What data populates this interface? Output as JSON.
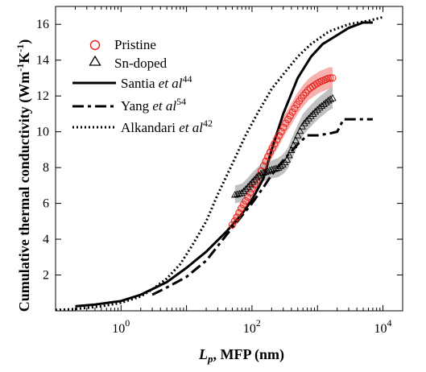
{
  "chart_data": {
    "type": "line",
    "xlabel": {
      "var": "L",
      "sub": "p",
      "rest": ", MFP (nm)"
    },
    "ylabel": {
      "main": "Cumulative thermal conductivity (Wm",
      "sup1": "-1",
      "mid": "K",
      "sup2": "-1",
      "close": ")"
    },
    "x_scale": "log",
    "xlim": [
      0.1,
      20000
    ],
    "ylim": [
      0,
      17
    ],
    "x_ticks": [
      {
        "value": 1,
        "base": "10",
        "exp": "0"
      },
      {
        "value": 100,
        "base": "10",
        "exp": "2"
      },
      {
        "value": 10000,
        "base": "10",
        "exp": "4"
      }
    ],
    "y_ticks": [
      2,
      4,
      6,
      8,
      10,
      12,
      14,
      16
    ],
    "grid": false,
    "legend_position": "top-left",
    "series": [
      {
        "name": "Pristine",
        "kind": "markers",
        "marker": "circle",
        "color": "#e8201a",
        "band_color": "#f4a3a0",
        "points": [
          [
            50,
            4.8
          ],
          [
            60,
            5.3
          ],
          [
            70,
            5.8
          ],
          [
            85,
            6.3
          ],
          [
            100,
            6.8
          ],
          [
            120,
            7.3
          ],
          [
            150,
            8.1
          ],
          [
            180,
            8.7
          ],
          [
            220,
            9.3
          ],
          [
            270,
            9.9
          ],
          [
            330,
            10.5
          ],
          [
            400,
            11.0
          ],
          [
            500,
            11.6
          ],
          [
            600,
            12.0
          ],
          [
            750,
            12.4
          ],
          [
            900,
            12.6
          ],
          [
            1100,
            12.8
          ],
          [
            1300,
            12.9
          ],
          [
            1500,
            13.0
          ],
          [
            1700,
            13.0
          ]
        ],
        "band": [
          [
            50,
            0.3
          ],
          [
            100,
            0.4
          ],
          [
            200,
            0.5
          ],
          [
            400,
            0.6
          ],
          [
            800,
            0.6
          ],
          [
            1700,
            0.6
          ]
        ]
      },
      {
        "name": "Sn-doped",
        "kind": "markers",
        "marker": "triangle",
        "color": "#000000",
        "band_color": "#b5b5b5",
        "points": [
          [
            55,
            6.5
          ],
          [
            70,
            6.6
          ],
          [
            85,
            6.9
          ],
          [
            100,
            7.2
          ],
          [
            120,
            7.5
          ],
          [
            140,
            7.7
          ],
          [
            170,
            7.8
          ],
          [
            200,
            7.9
          ],
          [
            250,
            8.0
          ],
          [
            300,
            8.2
          ],
          [
            350,
            8.5
          ],
          [
            400,
            9.0
          ],
          [
            500,
            9.8
          ],
          [
            600,
            10.4
          ],
          [
            750,
            10.8
          ],
          [
            900,
            11.1
          ],
          [
            1100,
            11.4
          ],
          [
            1300,
            11.6
          ],
          [
            1500,
            11.8
          ],
          [
            1700,
            11.9
          ]
        ],
        "band": [
          [
            55,
            0.5
          ],
          [
            100,
            0.5
          ],
          [
            200,
            0.5
          ],
          [
            400,
            0.6
          ],
          [
            800,
            0.6
          ],
          [
            1700,
            0.6
          ]
        ]
      },
      {
        "name": "Santia",
        "name_suffix": "et al",
        "ref": "44",
        "kind": "line",
        "dash": "solid",
        "color": "#000000",
        "points": [
          [
            0.2,
            0.25
          ],
          [
            0.4,
            0.35
          ],
          [
            1,
            0.55
          ],
          [
            2,
            0.9
          ],
          [
            5,
            1.6
          ],
          [
            10,
            2.4
          ],
          [
            20,
            3.3
          ],
          [
            40,
            4.4
          ],
          [
            70,
            5.4
          ],
          [
            100,
            6.2
          ],
          [
            150,
            7.4
          ],
          [
            200,
            9.0
          ],
          [
            300,
            11.0
          ],
          [
            500,
            13.0
          ],
          [
            800,
            14.2
          ],
          [
            1200,
            14.9
          ],
          [
            2000,
            15.4
          ],
          [
            3000,
            15.8
          ],
          [
            5000,
            16.1
          ],
          [
            7000,
            16.1
          ]
        ]
      },
      {
        "name": "Yang",
        "name_suffix": "et al",
        "ref": "54",
        "kind": "line",
        "dash": "dashdot",
        "color": "#000000",
        "points": [
          [
            3,
            0.9
          ],
          [
            5,
            1.3
          ],
          [
            10,
            1.9
          ],
          [
            20,
            2.8
          ],
          [
            40,
            4.2
          ],
          [
            70,
            5.3
          ],
          [
            100,
            6.0
          ],
          [
            150,
            6.9
          ],
          [
            200,
            7.6
          ],
          [
            300,
            8.4
          ],
          [
            500,
            9.3
          ],
          [
            700,
            9.8
          ],
          [
            1000,
            9.8
          ],
          [
            1500,
            9.9
          ],
          [
            2000,
            10.0
          ],
          [
            2500,
            10.7
          ],
          [
            3500,
            10.7
          ],
          [
            7000,
            10.7
          ]
        ]
      },
      {
        "name": "Alkandari",
        "name_suffix": "et al",
        "ref": "42",
        "kind": "line",
        "dash": "dotted",
        "color": "#000000",
        "points": [
          [
            0.1,
            0.05
          ],
          [
            0.2,
            0.1
          ],
          [
            0.5,
            0.25
          ],
          [
            1,
            0.45
          ],
          [
            2,
            0.8
          ],
          [
            3,
            1.2
          ],
          [
            5,
            1.8
          ],
          [
            8,
            2.6
          ],
          [
            12,
            3.6
          ],
          [
            20,
            5.0
          ],
          [
            30,
            6.5
          ],
          [
            50,
            8.2
          ],
          [
            80,
            9.8
          ],
          [
            120,
            11.0
          ],
          [
            200,
            12.4
          ],
          [
            300,
            13.2
          ],
          [
            500,
            14.2
          ],
          [
            800,
            14.9
          ],
          [
            1500,
            15.6
          ],
          [
            3000,
            16.0
          ],
          [
            6000,
            16.2
          ],
          [
            10000,
            16.4
          ]
        ]
      }
    ]
  }
}
